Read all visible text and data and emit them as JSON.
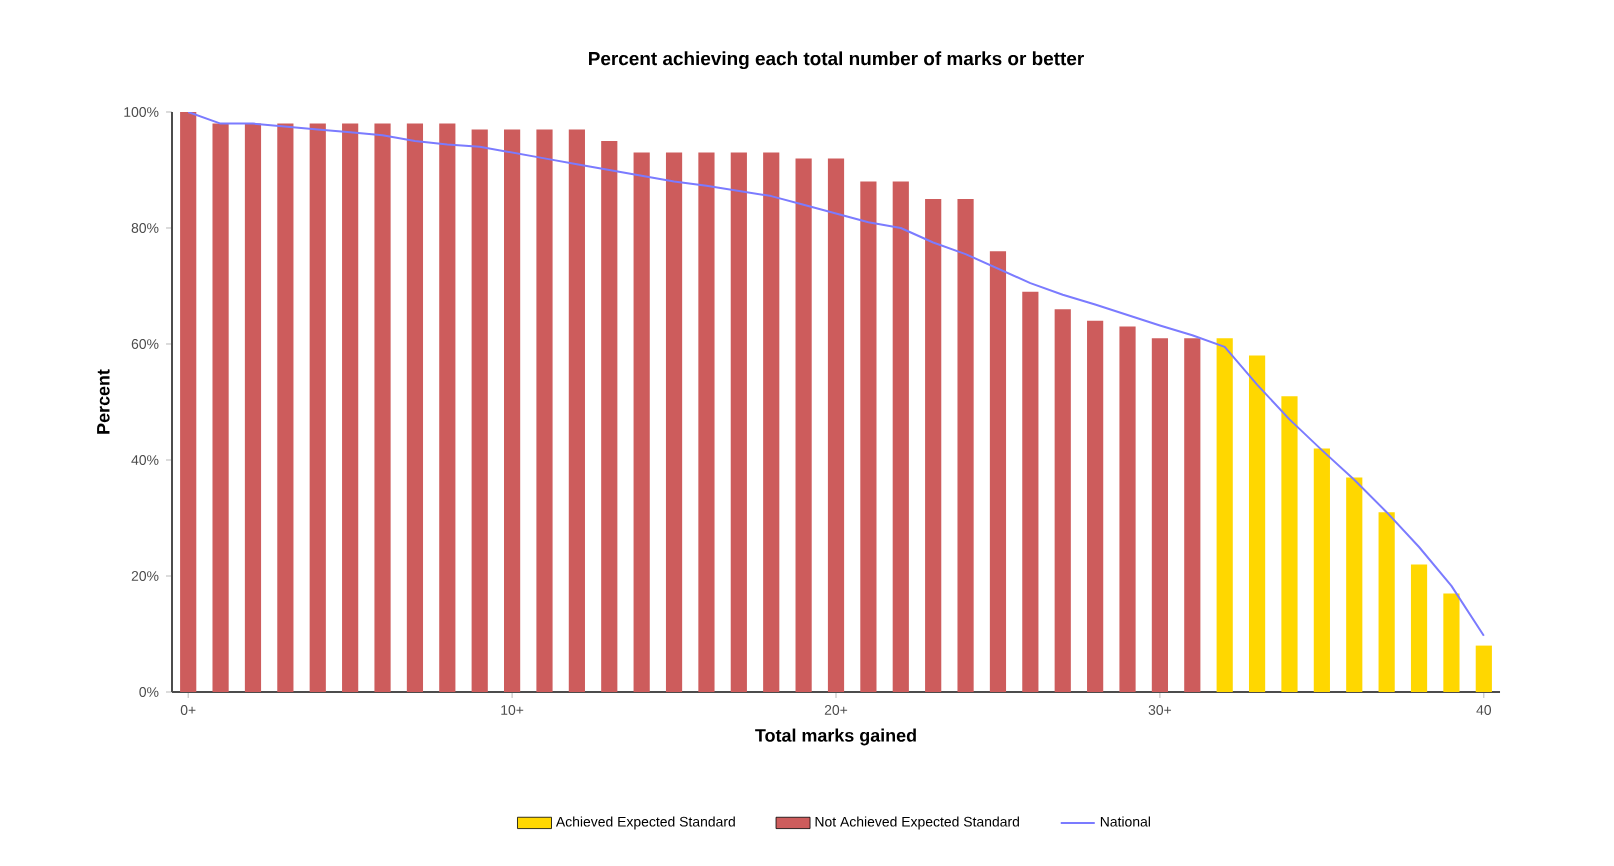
{
  "chart_data": {
    "type": "bar",
    "title": "Percent achieving each total number of marks or better",
    "xlabel": "Total marks gained",
    "ylabel": "Percent",
    "categories": [
      "0+",
      null,
      null,
      null,
      null,
      null,
      null,
      null,
      null,
      null,
      "10+",
      null,
      null,
      null,
      null,
      null,
      null,
      null,
      null,
      null,
      "20+",
      null,
      null,
      null,
      null,
      null,
      null,
      null,
      null,
      null,
      "30+",
      null,
      null,
      null,
      null,
      null,
      null,
      null,
      null,
      null,
      "40"
    ],
    "series": [
      {
        "name": "Achieved Expected Standard",
        "color": "#ffd700",
        "values": [
          null,
          null,
          null,
          null,
          null,
          null,
          null,
          null,
          null,
          null,
          null,
          null,
          null,
          null,
          null,
          null,
          null,
          null,
          null,
          null,
          null,
          null,
          null,
          null,
          null,
          null,
          null,
          null,
          null,
          null,
          null,
          null,
          61,
          58,
          51,
          42,
          37,
          31,
          22,
          17,
          8
        ]
      },
      {
        "name": "Not Achieved Expected Standard",
        "color": "#cd5c5c",
        "values": [
          100,
          98,
          98,
          98,
          98,
          98,
          98,
          98,
          98,
          97,
          97,
          97,
          97,
          95,
          93,
          93,
          93,
          93,
          93,
          92,
          92,
          88,
          88,
          85,
          85,
          76,
          69,
          66,
          64,
          63,
          61,
          61,
          null,
          null,
          null,
          null,
          null,
          null,
          null,
          null,
          null
        ]
      },
      {
        "name": "National",
        "type": "line",
        "color": "#7b7bff",
        "values": [
          100,
          98,
          98,
          97.5,
          97,
          96.5,
          96,
          95,
          94.4,
          94,
          93,
          92,
          91,
          90,
          89,
          88,
          87.3,
          86.4,
          85.5,
          84,
          82.5,
          81,
          80,
          77.5,
          75.5,
          73,
          70.5,
          68.5,
          66.8,
          65,
          63.2,
          61.5,
          59.5,
          53,
          47,
          41.7,
          36.6,
          31,
          25,
          18.3,
          9.7
        ]
      }
    ],
    "ylim": [
      0,
      100
    ],
    "yticks": [
      {
        "value": 0,
        "label": "0%"
      },
      {
        "value": 20,
        "label": "20%"
      },
      {
        "value": 40,
        "label": "40%"
      },
      {
        "value": 60,
        "label": "60%"
      },
      {
        "value": 80,
        "label": "80%"
      },
      {
        "value": 100,
        "label": "100%"
      }
    ],
    "legend": "bottom",
    "marker": "none"
  }
}
